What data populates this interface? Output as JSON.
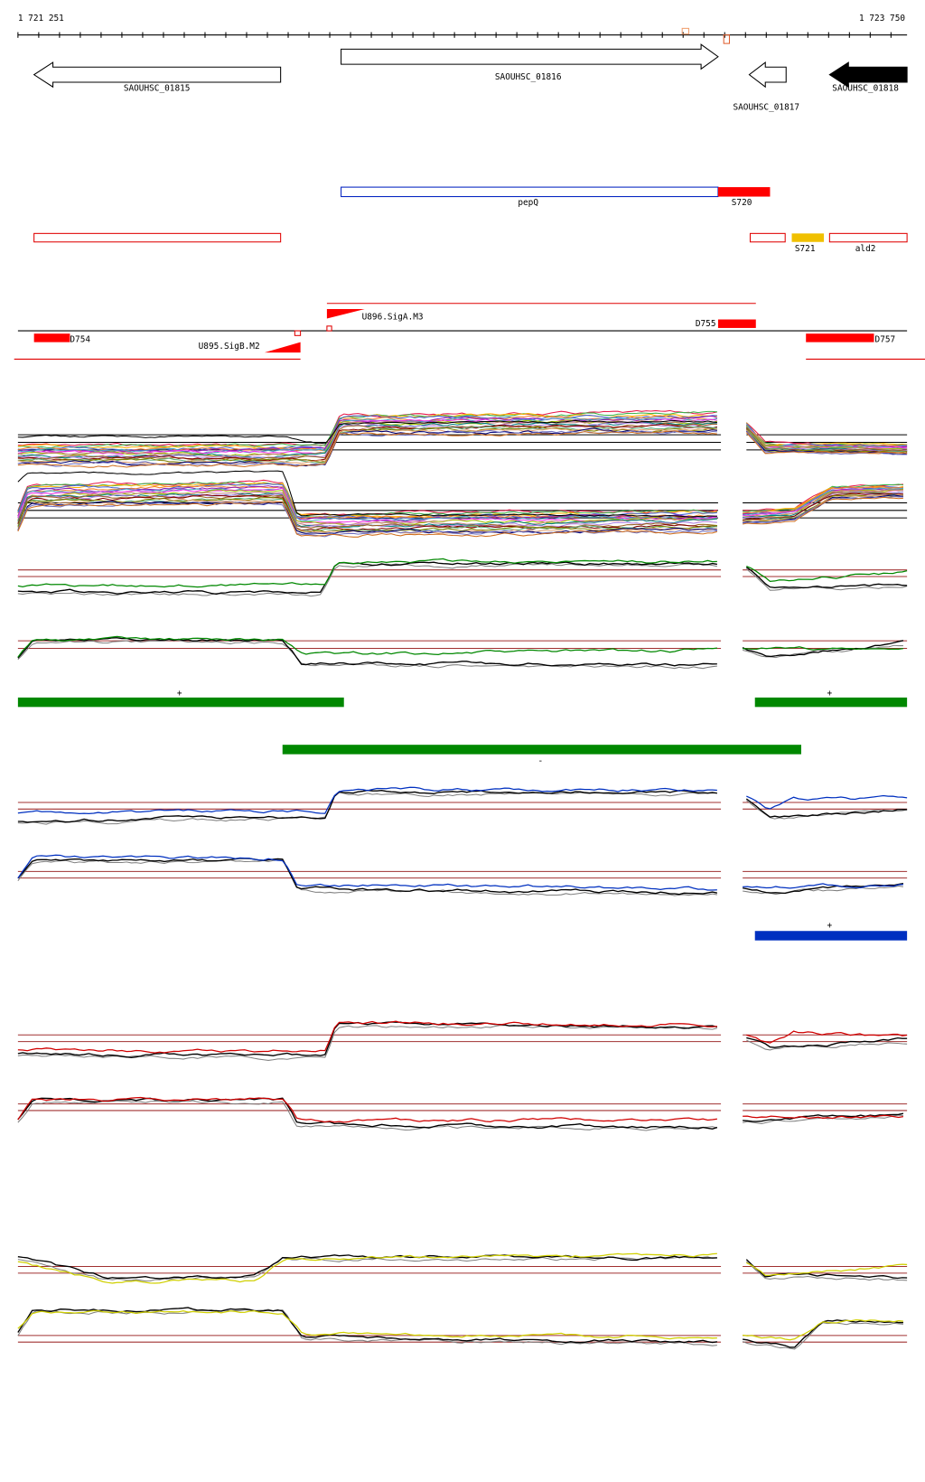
{
  "ruler": {
    "start": "1 721 251",
    "end": "1 723 750"
  },
  "genes": [
    {
      "label": "SAOUHSC_01815"
    },
    {
      "label": "SAOUHSC_01816"
    },
    {
      "label": "SAOUHSC_01817"
    },
    {
      "label": "SAOUHSC_01818"
    }
  ],
  "features": [
    {
      "label": "pepQ"
    },
    {
      "label": "S720"
    },
    {
      "label": "S721"
    },
    {
      "label": "ald2"
    }
  ],
  "sites": [
    {
      "label": "U896.SigA.M3"
    },
    {
      "label": "D755"
    },
    {
      "label": "D754"
    },
    {
      "label": "U895.SigB.M2"
    },
    {
      "label": "D757"
    }
  ],
  "strands": [
    "+",
    "+",
    "-",
    "+"
  ]
}
